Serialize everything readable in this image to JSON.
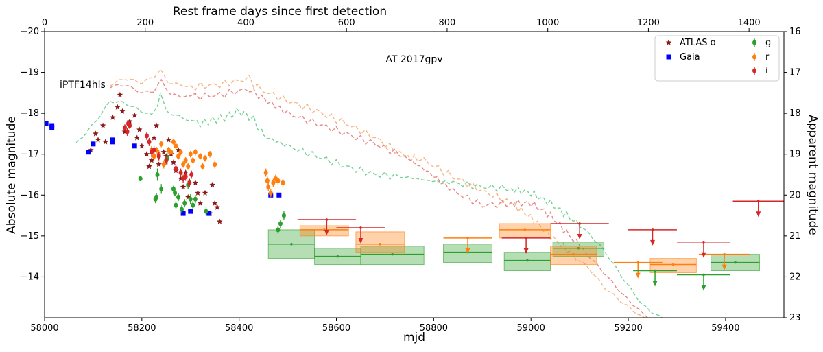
{
  "chart_data": {
    "type": "scatter",
    "title": "AT 2017gpv",
    "reference_label": "iPTF14hls",
    "xlabel": "mjd",
    "ylabel_left": "Absolute magnitude",
    "ylabel_right": "Apparent magnitude",
    "xlabel_top": "Rest frame days since first detection",
    "xlim": [
      58000,
      59520
    ],
    "ylim_abs": [
      -20,
      -13
    ],
    "ylim_app": [
      16,
      23
    ],
    "xticks": [
      58000,
      58200,
      58400,
      58600,
      58800,
      59000,
      59200,
      59400
    ],
    "yticks_left": [
      -20,
      -19,
      -18,
      -17,
      -16,
      -15,
      -14
    ],
    "yticks_right": [
      16,
      17,
      18,
      19,
      20,
      21,
      22,
      23
    ],
    "xticks_top": [
      0,
      200,
      400,
      600,
      800,
      1000,
      1200,
      1400
    ],
    "rest_frame_scale": 1.0345,
    "colors": {
      "g": "#2ca02c",
      "r": "#ff7f0e",
      "i": "#d62728",
      "atlas": "#8b1a1a",
      "gaia": "#0000ff",
      "g_dash": "#6fcf8f",
      "r_dash": "#f5b27e",
      "i_dash": "#e88080"
    },
    "legend": [
      {
        "label": "ATLAS o",
        "marker": "star",
        "color": "#8b1a1a"
      },
      {
        "label": "Gaia",
        "marker": "square",
        "color": "#0000ff"
      },
      {
        "label": "g",
        "marker": "errorbar",
        "color": "#2ca02c"
      },
      {
        "label": "r",
        "marker": "errorbar",
        "color": "#ff7f0e"
      },
      {
        "label": "i",
        "marker": "errorbar",
        "color": "#d62728"
      }
    ],
    "series": [
      {
        "name": "iPTF14hls g (template)",
        "style": "dashed",
        "color": "#6fcf8f",
        "x": [
          58065,
          58105,
          58135,
          58165,
          58200,
          58220,
          58232,
          58238,
          58250,
          58280,
          58320,
          58370,
          58400,
          58430,
          58450,
          58500,
          58560,
          58620,
          58680,
          58740,
          58790,
          58840,
          58900,
          58960,
          59000,
          59040,
          59080,
          59120,
          59150,
          59190,
          59230,
          59260,
          59280
        ],
        "y": [
          -17.25,
          -17.8,
          -18.3,
          -18.25,
          -18.05,
          -17.95,
          -18.2,
          -18.5,
          -18.05,
          -17.9,
          -17.75,
          -17.9,
          -18.05,
          -17.85,
          -17.45,
          -17.2,
          -16.95,
          -16.7,
          -16.5,
          -16.45,
          -16.35,
          -16.3,
          -16.2,
          -16.15,
          -16.05,
          -15.8,
          -15.45,
          -15.05,
          -14.65,
          -13.95,
          -13.3,
          -13.05,
          -12.9
        ]
      },
      {
        "name": "iPTF14hls r (template)",
        "style": "dashed",
        "color": "#f5b27e",
        "x": [
          58135,
          58165,
          58200,
          58225,
          58238,
          58255,
          58300,
          58360,
          58420,
          58440,
          58500,
          58560,
          58620,
          58680,
          58740,
          58780,
          58840,
          58900,
          58960,
          59000,
          59040,
          59080,
          59120,
          59150,
          59190,
          59230,
          59260,
          59280
        ],
        "y": [
          -18.7,
          -18.85,
          -18.75,
          -18.9,
          -19.05,
          -18.75,
          -18.65,
          -18.7,
          -18.85,
          -18.6,
          -18.3,
          -18.05,
          -17.75,
          -17.4,
          -16.95,
          -16.85,
          -16.45,
          -16.1,
          -15.8,
          -15.45,
          -15.0,
          -14.6,
          -14.2,
          -13.75,
          -13.35,
          -13.0,
          -12.85,
          -12.75
        ]
      },
      {
        "name": "iPTF14hls i (template)",
        "style": "dashed",
        "color": "#e88080",
        "x": [
          58135,
          58165,
          58200,
          58225,
          58240,
          58260,
          58300,
          58360,
          58420,
          58450,
          58500,
          58560,
          58620,
          58680,
          58740,
          58790,
          58840,
          58900,
          58960,
          59000,
          59040,
          59080,
          59120,
          59150,
          59190,
          59230,
          59260,
          59280
        ],
        "y": [
          -18.65,
          -18.7,
          -18.5,
          -18.55,
          -18.8,
          -18.45,
          -18.4,
          -18.45,
          -18.6,
          -18.35,
          -18.0,
          -17.75,
          -17.5,
          -17.25,
          -16.95,
          -16.55,
          -16.1,
          -15.75,
          -15.8,
          -15.8,
          -15.5,
          -15.0,
          -14.5,
          -14.1,
          -13.55,
          -13.1,
          -12.9,
          -12.8
        ]
      },
      {
        "name": "ATLAS o",
        "marker": "star",
        "color": "#8b1a1a",
        "x": [
          58095,
          58105,
          58110,
          58120,
          58125,
          58140,
          58150,
          58155,
          58160,
          58165,
          58175,
          58185,
          58190,
          58195,
          58200,
          58210,
          58215,
          58220,
          58225,
          58230,
          58235,
          58245,
          58250,
          58255,
          58260,
          58265,
          58270,
          58275,
          58280,
          58285,
          58290,
          58295,
          58300,
          58310,
          58315,
          58320,
          58330,
          58340,
          58345,
          58350,
          58355,
          58360
        ],
        "y": [
          -17.1,
          -17.5,
          -17.35,
          -17.7,
          -17.3,
          -17.9,
          -18.15,
          -18.45,
          -18.05,
          -17.55,
          -17.8,
          -17.95,
          -17.4,
          -17.6,
          -17.2,
          -17.0,
          -16.7,
          -16.85,
          -17.4,
          -17.7,
          -16.75,
          -17.05,
          -16.95,
          -17.35,
          -17.0,
          -16.8,
          -16.6,
          -17.1,
          -16.4,
          -16.2,
          -16.55,
          -15.95,
          -15.6,
          -16.3,
          -16.05,
          -15.8,
          -16.05,
          -15.55,
          -16.25,
          -15.8,
          -15.7,
          -15.35
        ]
      },
      {
        "name": "Gaia",
        "marker": "square",
        "color": "#0000ff",
        "x": [
          58003,
          58015,
          58015,
          58090,
          58100,
          58140,
          58140,
          58185,
          58285,
          58300,
          58338,
          58465,
          58482
        ],
        "y": [
          -17.75,
          -17.7,
          -17.65,
          -17.05,
          -17.25,
          -17.3,
          -17.35,
          -17.2,
          -15.55,
          -15.6,
          -15.55,
          -16.0,
          -16.0
        ]
      },
      {
        "name": "g",
        "marker": "errorbar",
        "color": "#2ca02c",
        "x": [
          58197,
          58228,
          58230,
          58232,
          58240,
          58252,
          58265,
          58268,
          58270,
          58275,
          58282,
          58288,
          58295,
          58300,
          58305,
          58310,
          58332,
          58480,
          58485,
          58492
        ],
        "y": [
          -16.4,
          -15.9,
          -15.95,
          -16.5,
          -16.15,
          -16.9,
          -16.15,
          -16.05,
          -15.75,
          -15.95,
          -15.65,
          -15.8,
          -16.25,
          -15.9,
          -15.75,
          -15.9,
          -15.6,
          -15.15,
          -15.3,
          -15.5
        ],
        "err": [
          0.05,
          0.1,
          0.1,
          0.15,
          0.12,
          0.15,
          0.08,
          0.08,
          0.1,
          0.1,
          0.1,
          0.1,
          0.1,
          0.12,
          0.1,
          0.1,
          0.1,
          0.1,
          0.1,
          0.1
        ]
      },
      {
        "name": "r",
        "marker": "errorbar",
        "color": "#ff7f0e",
        "x": [
          58220,
          58225,
          58230,
          58235,
          58240,
          58245,
          58255,
          58260,
          58265,
          58270,
          58275,
          58280,
          58285,
          58290,
          58295,
          58300,
          58305,
          58310,
          58320,
          58325,
          58330,
          58340,
          58350,
          58455,
          58458,
          58460,
          58465,
          58470,
          58475,
          58480,
          58490
        ],
        "y": [
          -17.1,
          -16.95,
          -17.1,
          -17.0,
          -17.25,
          -16.75,
          -17.1,
          -17.05,
          -17.3,
          -17.2,
          -16.95,
          -17.05,
          -16.75,
          -16.85,
          -16.7,
          -17.0,
          -16.85,
          -17.05,
          -16.95,
          -16.7,
          -16.9,
          -17.0,
          -16.75,
          -16.55,
          -16.35,
          -16.2,
          -16.05,
          -16.3,
          -16.4,
          -16.35,
          -16.3
        ],
        "err": [
          0.1,
          0.1,
          0.08,
          0.1,
          0.08,
          0.1,
          0.08,
          0.08,
          0.08,
          0.08,
          0.08,
          0.08,
          0.08,
          0.08,
          0.08,
          0.08,
          0.08,
          0.08,
          0.08,
          0.08,
          0.08,
          0.08,
          0.1,
          0.1,
          0.1,
          0.1,
          0.1,
          0.1,
          0.1,
          0.1,
          0.1
        ]
      },
      {
        "name": "i",
        "marker": "errorbar",
        "color": "#d62728",
        "x": [
          58165,
          58170,
          58172,
          58175,
          58210,
          58215,
          58220,
          58225,
          58235,
          58250,
          58270,
          58280,
          58285,
          58290,
          58298,
          58302
        ],
        "y": [
          -17.65,
          -17.55,
          -17.75,
          -17.7,
          -17.45,
          -17.3,
          -17.05,
          -17.1,
          -16.95,
          -16.85,
          -16.65,
          -16.55,
          -16.4,
          -16.45,
          -16.3,
          -16.5
        ],
        "err": [
          0.08,
          0.1,
          0.08,
          0.08,
          0.1,
          0.1,
          0.12,
          0.1,
          0.1,
          0.1,
          0.1,
          0.1,
          0.1,
          0.1,
          0.1,
          0.1
        ]
      }
    ],
    "binned_detections": [
      {
        "band": "g",
        "x": [
          58460,
          58555
        ],
        "y": -14.8,
        "yrange": [
          -15.15,
          -14.45
        ]
      },
      {
        "band": "g",
        "x": [
          58555,
          58650
        ],
        "y": -14.5,
        "yrange": [
          -14.7,
          -14.3
        ]
      },
      {
        "band": "g",
        "x": [
          58650,
          58780
        ],
        "y": -14.55,
        "yrange": [
          -14.75,
          -14.3
        ]
      },
      {
        "band": "g",
        "x": [
          58820,
          58920
        ],
        "y": -14.6,
        "yrange": [
          -14.8,
          -14.35
        ]
      },
      {
        "band": "g",
        "x": [
          58945,
          59040
        ],
        "y": -14.4,
        "yrange": [
          -14.6,
          -14.15
        ]
      },
      {
        "band": "g",
        "x": [
          59045,
          59150
        ],
        "y": -14.7,
        "yrange": [
          -14.85,
          -14.5
        ]
      },
      {
        "band": "g",
        "x": [
          59370,
          59470
        ],
        "y": -14.35,
        "yrange": [
          -14.55,
          -14.15
        ]
      },
      {
        "band": "r",
        "x": [
          58525,
          58625
        ],
        "y": -15.15,
        "yrange": [
          -15.25,
          -15.0
        ]
      },
      {
        "band": "r",
        "x": [
          58640,
          58740
        ],
        "y": -14.8,
        "yrange": [
          -15.1,
          -14.6
        ]
      },
      {
        "band": "r",
        "x": [
          58935,
          59040
        ],
        "y": -15.15,
        "yrange": [
          -15.3,
          -14.95
        ]
      },
      {
        "band": "r",
        "x": [
          59040,
          59135
        ],
        "y": -14.55,
        "yrange": [
          -14.75,
          -14.3
        ]
      },
      {
        "band": "r",
        "x": [
          59245,
          59340
        ],
        "y": -14.3,
        "yrange": [
          -14.45,
          -14.1
        ]
      }
    ],
    "upper_limits": [
      {
        "band": "r",
        "x": [
          58820,
          58920
        ],
        "y": -14.95
      },
      {
        "band": "r",
        "x": [
          59170,
          59270
        ],
        "y": -14.35
      },
      {
        "band": "r",
        "x": [
          59345,
          59450
        ],
        "y": -14.55
      },
      {
        "band": "i",
        "x": [
          58520,
          58640
        ],
        "y": -15.4
      },
      {
        "band": "i",
        "x": [
          58600,
          58700
        ],
        "y": -15.2
      },
      {
        "band": "i",
        "x": [
          58940,
          59040
        ],
        "y": -14.95
      },
      {
        "band": "i",
        "x": [
          59040,
          59160
        ],
        "y": -15.3
      },
      {
        "band": "i",
        "x": [
          59200,
          59300
        ],
        "y": -15.15
      },
      {
        "band": "i",
        "x": [
          59300,
          59410
        ],
        "y": -14.85
      },
      {
        "band": "i",
        "x": [
          59415,
          59520
        ],
        "y": -15.85
      },
      {
        "band": "g",
        "x": [
          59210,
          59300
        ],
        "y": -14.15
      },
      {
        "band": "g",
        "x": [
          59300,
          59410
        ],
        "y": -14.05
      }
    ]
  }
}
